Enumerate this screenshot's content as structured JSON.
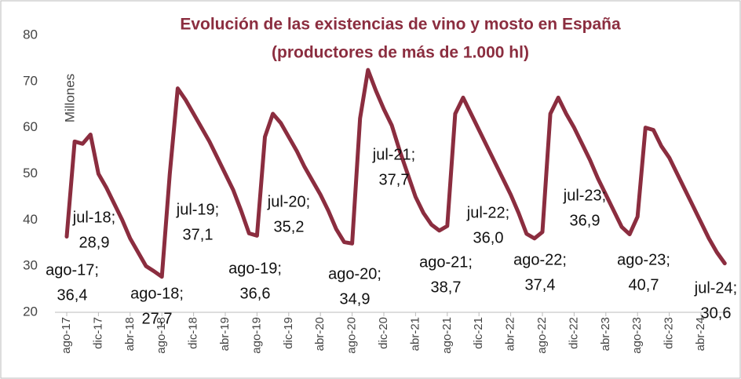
{
  "chart_data": {
    "type": "line",
    "title": [
      "Evolución de las existencias de vino y mosto en España",
      "(productores de más de 1.000 hl)"
    ],
    "y_label": "Millones",
    "categories": [
      "ago-17",
      null,
      null,
      null,
      "dic-17",
      null,
      null,
      null,
      "abr-18",
      null,
      null,
      null,
      "ago-18",
      null,
      null,
      null,
      "dic-18",
      null,
      null,
      null,
      "abr-19",
      null,
      null,
      null,
      "ago-19",
      null,
      null,
      null,
      "dic-19",
      null,
      null,
      null,
      "abr-20",
      null,
      null,
      null,
      "ago-20",
      null,
      null,
      null,
      "dic-20",
      null,
      null,
      null,
      "abr-21",
      null,
      null,
      null,
      "ago-21",
      null,
      null,
      null,
      "dic-21",
      null,
      null,
      null,
      "abr-22",
      null,
      null,
      null,
      "ago-22",
      null,
      null,
      null,
      "dic-22",
      null,
      null,
      null,
      "abr-23",
      null,
      null,
      null,
      "ago-23",
      null,
      null,
      null,
      "dic-23",
      null,
      null,
      null,
      "abr-24",
      null,
      null,
      null
    ],
    "series": [
      {
        "name": "Existencias",
        "color": "#8b2d3f",
        "values": [
          36.4,
          57,
          56.5,
          58.5,
          50,
          47,
          43.5,
          40,
          36,
          33,
          30,
          28.9,
          27.7,
          50,
          68.5,
          66,
          63,
          60,
          57,
          53.5,
          50,
          46.5,
          42,
          37.1,
          36.6,
          58,
          63,
          61,
          58,
          55,
          51.5,
          48.5,
          45.5,
          42,
          38,
          35.2,
          34.9,
          62,
          72.5,
          68,
          64,
          60.5,
          55,
          50,
          45,
          41.5,
          39,
          37.7,
          38.7,
          63,
          66.5,
          63,
          59.5,
          56,
          52.5,
          49,
          45.5,
          41.5,
          37,
          36.0,
          37.4,
          63,
          66.5,
          63,
          60,
          56.5,
          53,
          49,
          45.5,
          42,
          38.5,
          36.9,
          40.7,
          60,
          59.5,
          56,
          53.5,
          50,
          46.5,
          43,
          39.5,
          36,
          33,
          30.6
        ]
      }
    ],
    "ylim": [
      20,
      80
    ],
    "yticks": [
      20,
      30,
      40,
      50,
      60,
      70,
      80
    ],
    "grid": false,
    "annotations": [
      [
        "ago-17;",
        "36,4"
      ],
      [
        "jul-18;",
        "28,9"
      ],
      [
        "ago-18;",
        "27,7"
      ],
      [
        "jul-19;",
        "37,1"
      ],
      [
        "ago-19;",
        "36,6"
      ],
      [
        "jul-20;",
        "35,2"
      ],
      [
        "ago-20;",
        "34,9"
      ],
      [
        "jul-21;",
        "37,7"
      ],
      [
        "ago-21;",
        "38,7"
      ],
      [
        "jul-22;",
        "36,0"
      ],
      [
        "ago-22;",
        "37,4"
      ],
      [
        "jul-23;",
        "36,9"
      ],
      [
        "ago-23;",
        "40,7"
      ],
      [
        "jul-24;",
        "30,6"
      ]
    ]
  }
}
